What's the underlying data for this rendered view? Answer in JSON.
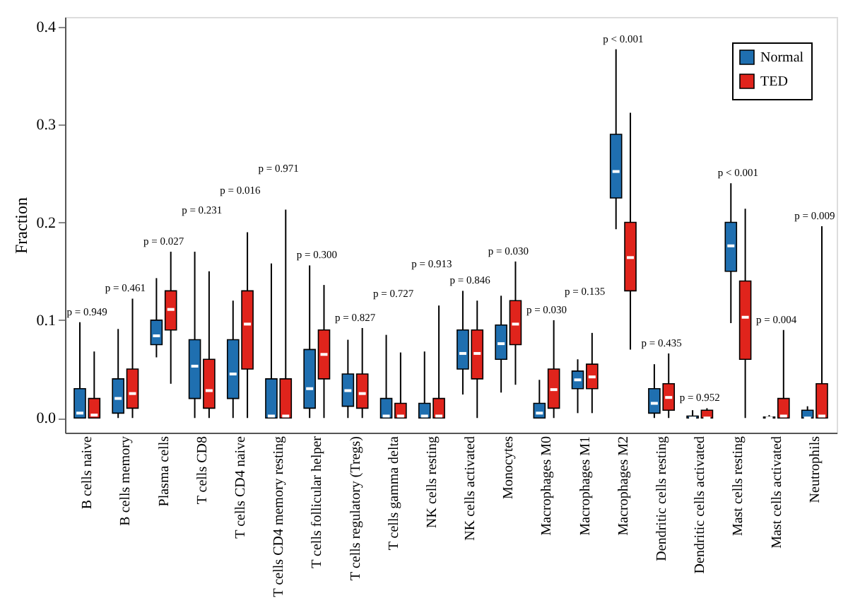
{
  "chart_data": {
    "type": "box",
    "ylabel": "Fraction",
    "ylim": [
      -0.015,
      0.41
    ],
    "yticks": [
      {
        "value": 0,
        "label": "0.0"
      },
      {
        "value": 0.1,
        "label": "0.1"
      },
      {
        "value": 0.2,
        "label": "0.2"
      },
      {
        "value": 0.3,
        "label": "0.3"
      },
      {
        "value": 0.4,
        "label": "0.4"
      }
    ],
    "grid": false,
    "legend": "top right",
    "categories": [
      "B cells naive",
      "B cells memory",
      "Plasma cells",
      "T cells CD8",
      "T cells CD4 naive",
      "T cells CD4 memory resting",
      "T cells follicular helper",
      "T cells regulatory (Tregs)",
      "T cells gamma delta",
      "NK cells resting",
      "NK cells activated",
      "Monocytes",
      "Macrophages M0",
      "Macrophages M1",
      "Macrophages M2",
      "Dendritic cells resting",
      "Dendritic cells activated",
      "Mast cells resting",
      "Mast cells activated",
      "Neutrophils"
    ],
    "series": [
      {
        "name": "Normal",
        "color": "#1f6fb0",
        "boxes": [
          {
            "low": 0,
            "q1": 0,
            "median": 0.005,
            "q3": 0.03,
            "high": 0.098
          },
          {
            "low": 0,
            "q1": 0.005,
            "median": 0.02,
            "q3": 0.04,
            "high": 0.091
          },
          {
            "low": 0.062,
            "q1": 0.075,
            "median": 0.084,
            "q3": 0.1,
            "high": 0.143
          },
          {
            "low": 0,
            "q1": 0.02,
            "median": 0.053,
            "q3": 0.08,
            "high": 0.17
          },
          {
            "low": 0,
            "q1": 0.02,
            "median": 0.045,
            "q3": 0.08,
            "high": 0.12
          },
          {
            "low": 0,
            "q1": 0,
            "median": 0.002,
            "q3": 0.04,
            "high": 0.158
          },
          {
            "low": 0,
            "q1": 0.01,
            "median": 0.03,
            "q3": 0.07,
            "high": 0.156
          },
          {
            "low": 0,
            "q1": 0.012,
            "median": 0.028,
            "q3": 0.045,
            "high": 0.08
          },
          {
            "low": 0,
            "q1": 0,
            "median": 0.002,
            "q3": 0.02,
            "high": 0.085
          },
          {
            "low": 0,
            "q1": 0,
            "median": 0.002,
            "q3": 0.015,
            "high": 0.068
          },
          {
            "low": 0.024,
            "q1": 0.05,
            "median": 0.066,
            "q3": 0.09,
            "high": 0.13
          },
          {
            "low": 0.026,
            "q1": 0.06,
            "median": 0.076,
            "q3": 0.095,
            "high": 0.125
          },
          {
            "low": 0,
            "q1": 0,
            "median": 0.005,
            "q3": 0.015,
            "high": 0.039
          },
          {
            "low": 0.005,
            "q1": 0.03,
            "median": 0.039,
            "q3": 0.048,
            "high": 0.06
          },
          {
            "low": 0.193,
            "q1": 0.225,
            "median": 0.252,
            "q3": 0.29,
            "high": 0.377
          },
          {
            "low": 0,
            "q1": 0.005,
            "median": 0.015,
            "q3": 0.03,
            "high": 0.055
          },
          {
            "low": 0,
            "q1": 0,
            "median": 0,
            "q3": 0.002,
            "high": 0.008
          },
          {
            "low": 0.097,
            "q1": 0.15,
            "median": 0.176,
            "q3": 0.2,
            "high": 0.24
          },
          {
            "low": 0,
            "q1": 0,
            "median": 0,
            "q3": 0.001,
            "high": 0.003
          },
          {
            "low": 0,
            "q1": 0,
            "median": 0,
            "q3": 0.008,
            "high": 0.012
          }
        ]
      },
      {
        "name": "TED",
        "color": "#e0241c",
        "boxes": [
          {
            "low": 0,
            "q1": 0,
            "median": 0.003,
            "q3": 0.02,
            "high": 0.068
          },
          {
            "low": 0,
            "q1": 0.01,
            "median": 0.025,
            "q3": 0.05,
            "high": 0.122
          },
          {
            "low": 0.035,
            "q1": 0.09,
            "median": 0.111,
            "q3": 0.13,
            "high": 0.17
          },
          {
            "low": 0,
            "q1": 0.01,
            "median": 0.028,
            "q3": 0.06,
            "high": 0.15
          },
          {
            "low": 0,
            "q1": 0.05,
            "median": 0.096,
            "q3": 0.13,
            "high": 0.19
          },
          {
            "low": 0,
            "q1": 0,
            "median": 0.002,
            "q3": 0.04,
            "high": 0.213
          },
          {
            "low": 0,
            "q1": 0.04,
            "median": 0.065,
            "q3": 0.09,
            "high": 0.136
          },
          {
            "low": 0,
            "q1": 0.01,
            "median": 0.025,
            "q3": 0.045,
            "high": 0.092
          },
          {
            "low": 0,
            "q1": 0,
            "median": 0.002,
            "q3": 0.015,
            "high": 0.067
          },
          {
            "low": 0,
            "q1": 0,
            "median": 0.002,
            "q3": 0.02,
            "high": 0.115
          },
          {
            "low": 0,
            "q1": 0.04,
            "median": 0.066,
            "q3": 0.09,
            "high": 0.12
          },
          {
            "low": 0.034,
            "q1": 0.075,
            "median": 0.096,
            "q3": 0.12,
            "high": 0.16
          },
          {
            "low": 0,
            "q1": 0.01,
            "median": 0.029,
            "q3": 0.05,
            "high": 0.1
          },
          {
            "low": 0.005,
            "q1": 0.03,
            "median": 0.042,
            "q3": 0.055,
            "high": 0.087
          },
          {
            "low": 0.07,
            "q1": 0.13,
            "median": 0.164,
            "q3": 0.2,
            "high": 0.312
          },
          {
            "low": 0,
            "q1": 0.008,
            "median": 0.021,
            "q3": 0.035,
            "high": 0.066
          },
          {
            "low": 0,
            "q1": 0,
            "median": 0,
            "q3": 0.008,
            "high": 0.01
          },
          {
            "low": 0,
            "q1": 0.06,
            "median": 0.103,
            "q3": 0.14,
            "high": 0.214
          },
          {
            "low": 0,
            "q1": 0,
            "median": 0.002,
            "q3": 0.02,
            "high": 0.09
          },
          {
            "low": 0,
            "q1": 0,
            "median": 0.002,
            "q3": 0.035,
            "high": 0.196
          }
        ]
      }
    ],
    "annotations": [
      "p = 0.949",
      "p = 0.461",
      "p = 0.027",
      "p = 0.231",
      "p = 0.016",
      "p = 0.971",
      "p = 0.300",
      "p = 0.827",
      "p = 0.727",
      "p = 0.913",
      "p = 0.846",
      "p = 0.030",
      "p = 0.030",
      "p = 0.135",
      "p < 0.001",
      "p = 0.435",
      "p = 0.952",
      "p < 0.001",
      "p = 0.004",
      "p = 0.009"
    ]
  }
}
